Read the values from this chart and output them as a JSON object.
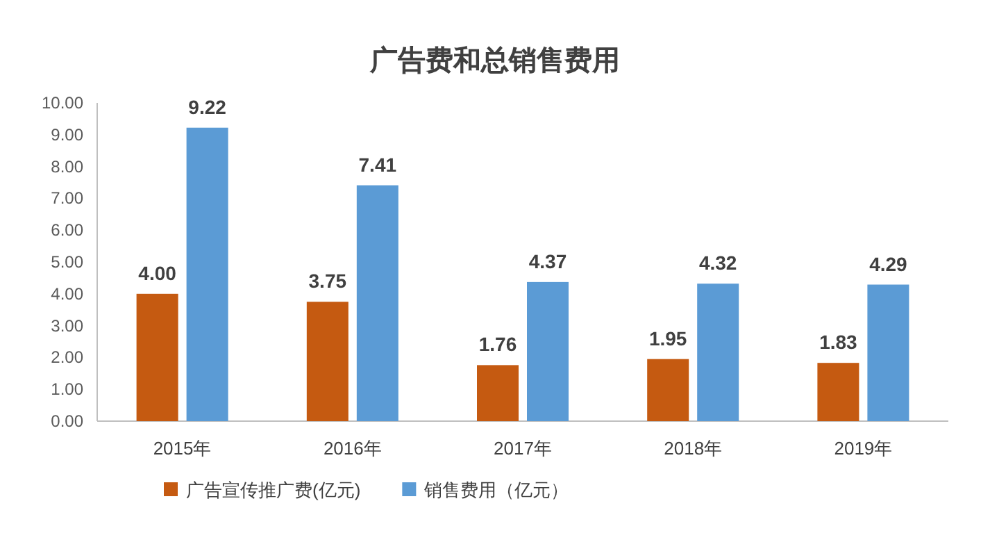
{
  "chart_data": {
    "type": "bar",
    "title": "广告费和总销售费用",
    "categories": [
      "2015年",
      "2016年",
      "2017年",
      "2018年",
      "2019年"
    ],
    "series": [
      {
        "name": "广告宣传推广费(亿元)",
        "color": "#c55a11",
        "values": [
          4.0,
          3.75,
          1.76,
          1.95,
          1.83
        ],
        "value_labels": [
          "4.00",
          "3.75",
          "1.76",
          "1.95",
          "1.83"
        ]
      },
      {
        "name": "销售费用（亿元）",
        "color": "#5b9bd5",
        "values": [
          9.22,
          7.41,
          4.37,
          4.32,
          4.29
        ],
        "value_labels": [
          "9.22",
          "7.41",
          "4.37",
          "4.32",
          "4.29"
        ]
      }
    ],
    "ylim": [
      0,
      10
    ],
    "yticks": [
      {
        "value": 0,
        "label": "0.00"
      },
      {
        "value": 1,
        "label": "1.00"
      },
      {
        "value": 2,
        "label": "2.00"
      },
      {
        "value": 3,
        "label": "3.00"
      },
      {
        "value": 4,
        "label": "4.00"
      },
      {
        "value": 5,
        "label": "5.00"
      },
      {
        "value": 6,
        "label": "6.00"
      },
      {
        "value": 7,
        "label": "7.00"
      },
      {
        "value": 8,
        "label": "8.00"
      },
      {
        "value": 9,
        "label": "9.00"
      },
      {
        "value": 10,
        "label": "10.00"
      }
    ],
    "grid": false,
    "legend": "bottom"
  }
}
